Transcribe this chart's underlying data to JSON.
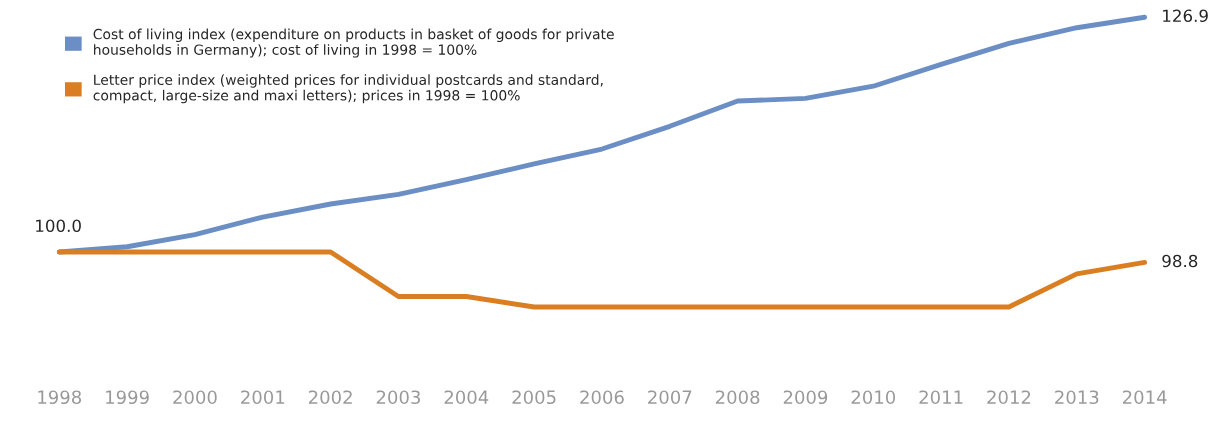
{
  "chart_data": {
    "type": "line",
    "categories": [
      "1998",
      "1999",
      "2000",
      "2001",
      "2002",
      "2003",
      "2004",
      "2005",
      "2006",
      "2007",
      "2008",
      "2009",
      "2010",
      "2011",
      "2012",
      "2013",
      "2014"
    ],
    "series": [
      {
        "name": "Cost of living index (expenditure on products in basket of goods for private\nhouseholds in Germany); cost of living in 1998 = 100%",
        "color": "#6b8fc4",
        "values": [
          100.0,
          100.6,
          102.0,
          104.0,
          105.5,
          106.6,
          108.3,
          110.1,
          111.8,
          114.4,
          117.3,
          117.6,
          119.0,
          121.5,
          123.9,
          125.7,
          126.9
        ],
        "value_labels": [
          "100.0",
          null,
          null,
          null,
          null,
          null,
          null,
          null,
          null,
          null,
          null,
          null,
          null,
          null,
          null,
          null,
          "126.9"
        ]
      },
      {
        "name": "Letter price index (weighted prices for individual postcards and standard,\ncompact, large-size and maxi letters); prices in 1998 = 100%",
        "color": "#d97f22",
        "values": [
          100.0,
          100.0,
          100.0,
          100.0,
          100.0,
          94.9,
          94.9,
          93.7,
          93.7,
          93.7,
          93.7,
          93.7,
          93.7,
          93.7,
          93.7,
          97.5,
          98.8
        ],
        "value_labels": [
          null,
          null,
          null,
          null,
          null,
          null,
          null,
          null,
          null,
          null,
          null,
          null,
          null,
          null,
          null,
          null,
          "98.8"
        ]
      }
    ],
    "legend": "top left",
    "grid": false,
    "marker": "none",
    "line_style": "solid"
  }
}
